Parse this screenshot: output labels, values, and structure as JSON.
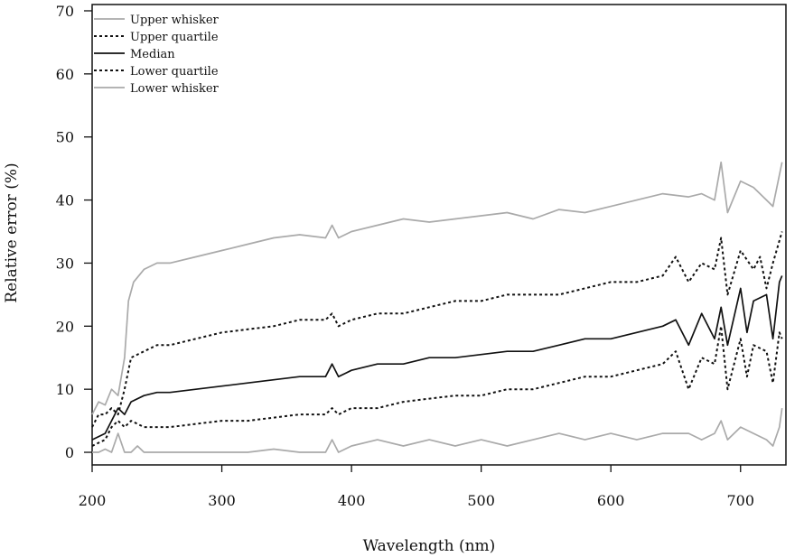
{
  "chart_data": {
    "type": "line",
    "xlabel": "Wavelength (nm)",
    "ylabel": "Relative error (%)",
    "xlim": [
      200,
      735
    ],
    "ylim": [
      -2,
      71
    ],
    "xticks": [
      200,
      300,
      400,
      500,
      600,
      700
    ],
    "yticks": [
      0,
      10,
      20,
      30,
      40,
      50,
      60,
      70
    ],
    "grid": false,
    "legend_position": "top-left",
    "colors": {
      "black": "#111111",
      "gray": "#aaaaaa"
    },
    "series": [
      {
        "name": "Upper whisker",
        "color": "#aaaaaa",
        "dash": "solid",
        "x": [
          200,
          205,
          210,
          215,
          220,
          225,
          228,
          232,
          240,
          250,
          260,
          280,
          300,
          320,
          340,
          360,
          380,
          385,
          390,
          400,
          420,
          440,
          460,
          480,
          500,
          520,
          540,
          560,
          580,
          600,
          620,
          640,
          660,
          670,
          680,
          685,
          690,
          700,
          710,
          720,
          725,
          732
        ],
        "y": [
          6,
          8,
          7.5,
          10,
          9,
          15,
          24,
          27,
          29,
          30,
          30,
          31,
          32,
          33,
          34,
          34.5,
          34,
          36,
          34,
          35,
          36,
          37,
          36.5,
          37,
          37.5,
          38,
          37,
          38.5,
          38,
          39,
          40,
          41,
          40.5,
          41,
          40,
          46,
          38,
          43,
          42,
          40,
          39,
          46
        ]
      },
      {
        "name": "Upper quartile",
        "color": "#111111",
        "dash": "dotted",
        "x": [
          200,
          205,
          210,
          215,
          220,
          225,
          230,
          240,
          250,
          260,
          280,
          300,
          320,
          340,
          360,
          380,
          385,
          390,
          400,
          420,
          440,
          460,
          480,
          500,
          520,
          540,
          560,
          580,
          600,
          620,
          640,
          650,
          660,
          670,
          680,
          685,
          690,
          700,
          710,
          715,
          720,
          725,
          732
        ],
        "y": [
          4,
          6,
          6,
          7,
          6,
          10,
          15,
          16,
          17,
          17,
          18,
          19,
          19.5,
          20,
          21,
          21,
          22,
          20,
          21,
          22,
          22,
          23,
          24,
          24,
          25,
          25,
          25,
          26,
          27,
          27,
          28,
          31,
          27,
          30,
          29,
          34,
          25,
          32,
          29,
          31,
          26,
          30,
          35
        ]
      },
      {
        "name": "Median",
        "color": "#111111",
        "dash": "solid",
        "x": [
          200,
          205,
          210,
          215,
          220,
          225,
          230,
          240,
          250,
          260,
          280,
          300,
          320,
          340,
          360,
          380,
          385,
          390,
          400,
          420,
          440,
          460,
          480,
          500,
          520,
          540,
          560,
          580,
          600,
          620,
          640,
          650,
          660,
          670,
          680,
          685,
          690,
          700,
          705,
          710,
          720,
          725,
          730,
          732
        ],
        "y": [
          2,
          2.5,
          3,
          5,
          7,
          6,
          8,
          9,
          9.5,
          9.5,
          10,
          10.5,
          11,
          11.5,
          12,
          12,
          14,
          12,
          13,
          14,
          14,
          15,
          15,
          15.5,
          16,
          16,
          17,
          18,
          18,
          19,
          20,
          21,
          17,
          22,
          18,
          23,
          17,
          26,
          19,
          24,
          25,
          18,
          27,
          28
        ]
      },
      {
        "name": "Lower quartile",
        "color": "#111111",
        "dash": "dotted",
        "x": [
          200,
          205,
          210,
          215,
          220,
          225,
          230,
          240,
          250,
          260,
          280,
          300,
          320,
          340,
          360,
          380,
          385,
          390,
          400,
          420,
          440,
          460,
          480,
          500,
          520,
          540,
          560,
          580,
          600,
          620,
          640,
          650,
          660,
          670,
          680,
          685,
          690,
          700,
          705,
          710,
          720,
          725,
          730,
          732
        ],
        "y": [
          1,
          1.5,
          2,
          4,
          5,
          4,
          5,
          4,
          4,
          4,
          4.5,
          5,
          5,
          5.5,
          6,
          6,
          7,
          6,
          7,
          7,
          8,
          8.5,
          9,
          9,
          10,
          10,
          11,
          12,
          12,
          13,
          14,
          16,
          10,
          15,
          14,
          20,
          10,
          18,
          12,
          17,
          16,
          11,
          19,
          18
        ]
      },
      {
        "name": "Lower whisker",
        "color": "#aaaaaa",
        "dash": "solid",
        "x": [
          200,
          205,
          210,
          215,
          220,
          225,
          230,
          235,
          240,
          250,
          260,
          280,
          300,
          320,
          340,
          360,
          380,
          385,
          390,
          400,
          420,
          440,
          460,
          480,
          500,
          520,
          540,
          560,
          580,
          600,
          620,
          640,
          660,
          670,
          680,
          685,
          690,
          700,
          710,
          720,
          725,
          730,
          732
        ],
        "y": [
          0,
          0,
          0.5,
          0,
          3,
          0,
          0,
          1,
          0,
          0,
          0,
          0,
          0,
          0,
          0.5,
          0,
          0,
          2,
          0,
          1,
          2,
          1,
          2,
          1,
          2,
          1,
          2,
          3,
          2,
          3,
          2,
          3,
          3,
          2,
          3,
          5,
          2,
          4,
          3,
          2,
          1,
          4,
          7
        ]
      }
    ]
  }
}
